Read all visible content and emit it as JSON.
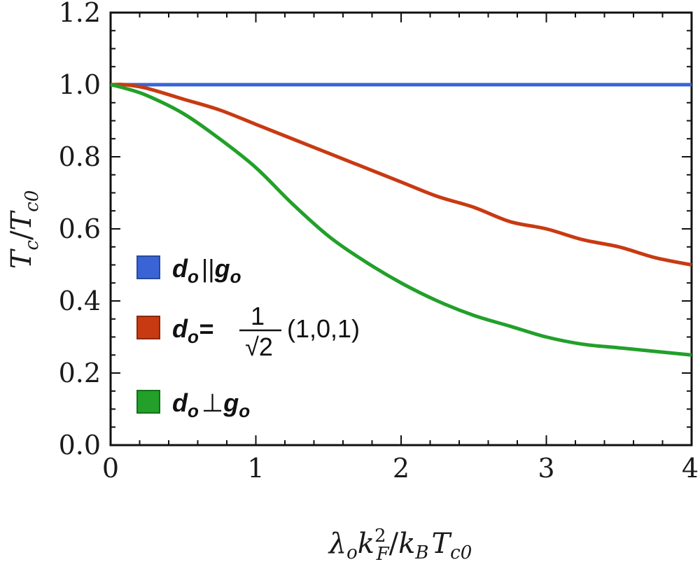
{
  "chart_data": {
    "type": "line",
    "xlabel": "λ_o k_F^2 / k_B T_c0",
    "ylabel": "T_c / T_c0",
    "xlim": [
      0,
      4
    ],
    "ylim": [
      0,
      1.2
    ],
    "x_ticks": [
      "0",
      "1",
      "2",
      "3",
      "4"
    ],
    "y_ticks": [
      "0.0",
      "0.2",
      "0.4",
      "0.6",
      "0.8",
      "1.0",
      "1.2"
    ],
    "grid": false,
    "legend_position": "left-middle",
    "series": [
      {
        "name": "d_o || g_o",
        "color": "#3a64d6",
        "x": [
          0,
          0.5,
          1,
          1.5,
          2,
          2.5,
          3,
          3.5,
          4
        ],
        "y": [
          1.0,
          1.0,
          1.0,
          1.0,
          1.0,
          1.0,
          1.0,
          1.0,
          1.0
        ]
      },
      {
        "name": "d_o = 1/√2 (1,0,1)",
        "color": "#c83a12",
        "x": [
          0,
          0.1,
          0.25,
          0.5,
          0.75,
          1.0,
          1.25,
          1.5,
          1.75,
          2.0,
          2.25,
          2.5,
          2.75,
          3.0,
          3.25,
          3.5,
          3.75,
          4.0
        ],
        "y": [
          1.0,
          1.0,
          0.99,
          0.96,
          0.93,
          0.89,
          0.85,
          0.81,
          0.77,
          0.73,
          0.69,
          0.66,
          0.62,
          0.6,
          0.57,
          0.55,
          0.52,
          0.5
        ]
      },
      {
        "name": "d_o ⊥ g_o",
        "color": "#22a02a",
        "x": [
          0,
          0.1,
          0.25,
          0.5,
          0.75,
          1.0,
          1.25,
          1.5,
          1.75,
          2.0,
          2.25,
          2.5,
          2.75,
          3.0,
          3.25,
          3.5,
          3.75,
          4.0
        ],
        "y": [
          1.0,
          0.99,
          0.97,
          0.92,
          0.85,
          0.77,
          0.67,
          0.58,
          0.51,
          0.45,
          0.4,
          0.36,
          0.33,
          0.3,
          0.28,
          0.27,
          0.26,
          0.25
        ]
      }
    ]
  },
  "legend": {
    "item1": {
      "d": "d",
      "o": "o",
      "op": "||",
      "g": "g"
    },
    "item2": {
      "d": "d",
      "o": "o",
      "eq": "=",
      "num": "1",
      "rad": "√2",
      "vec": "(1,0,1)"
    },
    "item3": {
      "d": "d",
      "o": "o",
      "op": "⊥",
      "g": "g"
    }
  },
  "axis_titles": {
    "y_main": "T",
    "y_sub1": "c",
    "y_slash": "/",
    "y_main2": "T",
    "y_sub2": "c0",
    "x_lambda": "λ",
    "x_o": "o",
    "x_k": "k",
    "x_sup": "2",
    "x_F": "F",
    "x_slash": "/",
    "x_k2": "k",
    "x_B": "B",
    "x_T": "T",
    "x_c0": "c0"
  }
}
